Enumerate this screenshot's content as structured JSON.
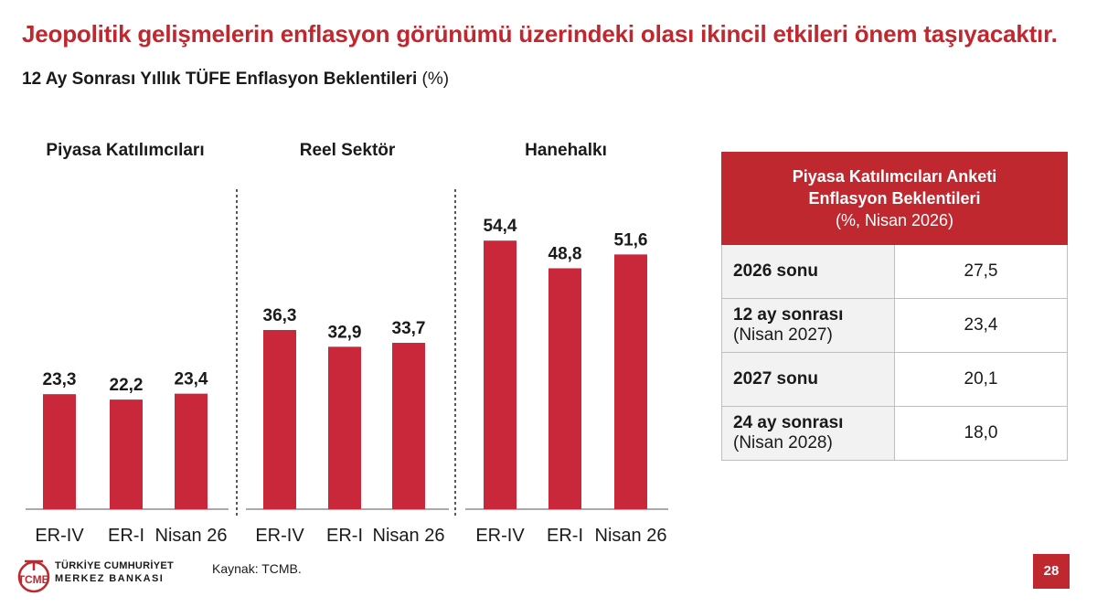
{
  "headline": "Jeopolitik gelişmelerin enflasyon görünümü üzerindeki olası ikincil etkileri önem taşıyacaktır.",
  "subtitle": {
    "text": "12 Ay Sonrası Yıllık TÜFE Enflasyon Beklentileri",
    "unit": "(%)"
  },
  "colors": {
    "accent": "#c0282f",
    "bar": "#c8283a"
  },
  "chart_data": {
    "type": "bar",
    "categories": [
      "ER-IV",
      "ER-I",
      "Nisan 26"
    ],
    "ylim": [
      0,
      60
    ],
    "grid": false,
    "panels": [
      {
        "title": "Piyasa Katılımcıları",
        "values": [
          23.3,
          22.2,
          23.4
        ],
        "labels": [
          "23,3",
          "22,2",
          "23,4"
        ]
      },
      {
        "title": "Reel Sektör",
        "values": [
          36.3,
          32.9,
          33.7
        ],
        "labels": [
          "36,3",
          "32,9",
          "33,7"
        ]
      },
      {
        "title": "Hanehalkı",
        "values": [
          54.4,
          48.8,
          51.6
        ],
        "labels": [
          "54,4",
          "48,8",
          "51,6"
        ]
      }
    ]
  },
  "table": {
    "header": {
      "title_line1": "Piyasa Katılımcıları Anketi",
      "title_line2": "Enflasyon Beklentileri",
      "unit": "(%, Nisan 2026)"
    },
    "rows": [
      {
        "label": "2026 sonu",
        "sub": "",
        "value": "27,5"
      },
      {
        "label": "12 ay sonrası",
        "sub": "(Nisan 2027)",
        "value": "23,4"
      },
      {
        "label": "2027 sonu",
        "sub": "",
        "value": "20,1"
      },
      {
        "label": "24 ay sonrası",
        "sub": "(Nisan 2028)",
        "value": "18,0"
      }
    ]
  },
  "footer": {
    "logo_line1": "TÜRKİYE CUMHURİYET",
    "logo_line2": "MERKEZ BANKASI",
    "logo_mark": "TCMB",
    "source": "Kaynak: TCMB.",
    "page_number": "28"
  }
}
